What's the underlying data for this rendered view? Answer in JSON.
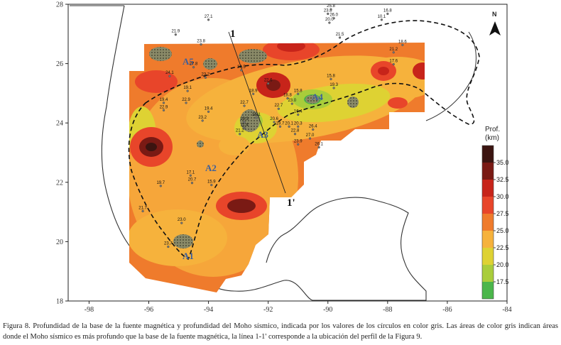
{
  "map": {
    "lon_ticks": [
      "-98",
      "-96",
      "-94",
      "-92",
      "-90",
      "-88",
      "-86",
      "-84"
    ],
    "lat_ticks": [
      "18",
      "20",
      "22",
      "24",
      "26",
      "28"
    ],
    "lon_range": [
      -98.7,
      -84
    ],
    "lat_range": [
      18,
      28
    ],
    "areas": [
      "A1",
      "A2",
      "A3",
      "A4",
      "A5"
    ],
    "profile": {
      "start": "1",
      "end": "1'"
    },
    "north": "N",
    "sites": [
      {
        "v": "27.1",
        "lon": -94.0,
        "lat": 27.55
      },
      {
        "v": "21.9",
        "lon": -95.1,
        "lat": 27.05
      },
      {
        "v": "23.8",
        "lon": -94.25,
        "lat": 26.72
      },
      {
        "v": "23.8",
        "lon": -90.0,
        "lat": 27.75
      },
      {
        "v": "25.8",
        "lon": -89.9,
        "lat": 27.9
      },
      {
        "v": "20.0",
        "lon": -89.95,
        "lat": 27.45
      },
      {
        "v": "26.0",
        "lon": -89.8,
        "lat": 27.6
      },
      {
        "v": "16.8",
        "lon": -88.0,
        "lat": 27.75
      },
      {
        "v": "10.1",
        "lon": -88.2,
        "lat": 27.55
      },
      {
        "v": "21.5",
        "lon": -89.6,
        "lat": 26.95
      },
      {
        "v": "18.6",
        "lon": -87.5,
        "lat": 26.7
      },
      {
        "v": "21.2",
        "lon": -87.8,
        "lat": 26.45
      },
      {
        "v": "17.6",
        "lon": -87.8,
        "lat": 26.05
      },
      {
        "v": "27.8",
        "lon": -94.5,
        "lat": 25.95
      },
      {
        "v": "24.1",
        "lon": -95.3,
        "lat": 25.65
      },
      {
        "v": "23.2",
        "lon": -94.1,
        "lat": 25.6
      },
      {
        "v": "24.5",
        "lon": -92.9,
        "lat": 25.85
      },
      {
        "v": "22.6",
        "lon": -92.0,
        "lat": 25.4
      },
      {
        "v": "15.8",
        "lon": -89.9,
        "lat": 25.55
      },
      {
        "v": "19.3",
        "lon": -89.8,
        "lat": 25.25
      },
      {
        "v": "19.1",
        "lon": -94.7,
        "lat": 25.15
      },
      {
        "v": "18.9",
        "lon": -92.5,
        "lat": 25.05
      },
      {
        "v": "15.8",
        "lon": -91.0,
        "lat": 25.05
      },
      {
        "v": "18.8",
        "lon": -91.35,
        "lat": 24.9
      },
      {
        "v": "23.0",
        "lon": -91.2,
        "lat": 24.72
      },
      {
        "v": "19.4",
        "lon": -95.5,
        "lat": 24.75
      },
      {
        "v": "22.9",
        "lon": -95.5,
        "lat": 24.5
      },
      {
        "v": "22.9",
        "lon": -94.75,
        "lat": 24.75
      },
      {
        "v": "19.4",
        "lon": -94.0,
        "lat": 24.45
      },
      {
        "v": "22.7",
        "lon": -92.8,
        "lat": 24.65
      },
      {
        "v": "22.7",
        "lon": -91.65,
        "lat": 24.55
      },
      {
        "v": "16.4",
        "lon": -91.0,
        "lat": 24.35
      },
      {
        "v": "16.1",
        "lon": -92.4,
        "lat": 24.25
      },
      {
        "v": "23.2",
        "lon": -94.2,
        "lat": 24.15
      },
      {
        "v": "19.3",
        "lon": -92.8,
        "lat": 24.1
      },
      {
        "v": "20.6",
        "lon": -91.8,
        "lat": 24.1
      },
      {
        "v": "19.7",
        "lon": -91.6,
        "lat": 23.95
      },
      {
        "v": "20.1",
        "lon": -91.3,
        "lat": 23.95
      },
      {
        "v": "20.3",
        "lon": -91.0,
        "lat": 23.95
      },
      {
        "v": "26.4",
        "lon": -90.5,
        "lat": 23.85
      },
      {
        "v": "11.4",
        "lon": -92.8,
        "lat": 23.9
      },
      {
        "v": "21.2",
        "lon": -92.95,
        "lat": 23.7
      },
      {
        "v": "22.8",
        "lon": -91.1,
        "lat": 23.7
      },
      {
        "v": "27.0",
        "lon": -90.6,
        "lat": 23.55
      },
      {
        "v": "23.9",
        "lon": -91.0,
        "lat": 23.35
      },
      {
        "v": "26.1",
        "lon": -90.3,
        "lat": 23.25
      },
      {
        "v": "17.1",
        "lon": -94.6,
        "lat": 22.3
      },
      {
        "v": "20.7",
        "lon": -94.55,
        "lat": 22.05
      },
      {
        "v": "15.9",
        "lon": -93.9,
        "lat": 21.98
      },
      {
        "v": "19.7",
        "lon": -95.6,
        "lat": 21.95
      },
      {
        "v": "21.7",
        "lon": -96.2,
        "lat": 21.1
      },
      {
        "v": "23.0",
        "lon": -94.9,
        "lat": 20.7
      },
      {
        "v": "23.7",
        "lon": -95.35,
        "lat": 19.9
      }
    ],
    "colorbar": {
      "title_line1": "Prof.",
      "title_line2": "(km)",
      "levels": [
        "35.0",
        "32.5",
        "30.0",
        "27.5",
        "25.0",
        "22.5",
        "20.0",
        "17.5"
      ],
      "colors": [
        "#3b1410",
        "#7a1a14",
        "#c7241a",
        "#e8452a",
        "#ef7b2c",
        "#f6b23c",
        "#ded233",
        "#a9cd3b",
        "#4bb64b"
      ]
    }
  },
  "caption": "Figura 8. Profundidad de la base de la fuente magnética y profundidad del Moho sísmico, indicada por los valores de los círculos en color gris. Las áreas de color gris indican áreas donde el Moho sísmico es más profundo que la base de la fuente magnética, la línea 1-1' corresponde a la ubicación del perfil de la Figura 9."
}
